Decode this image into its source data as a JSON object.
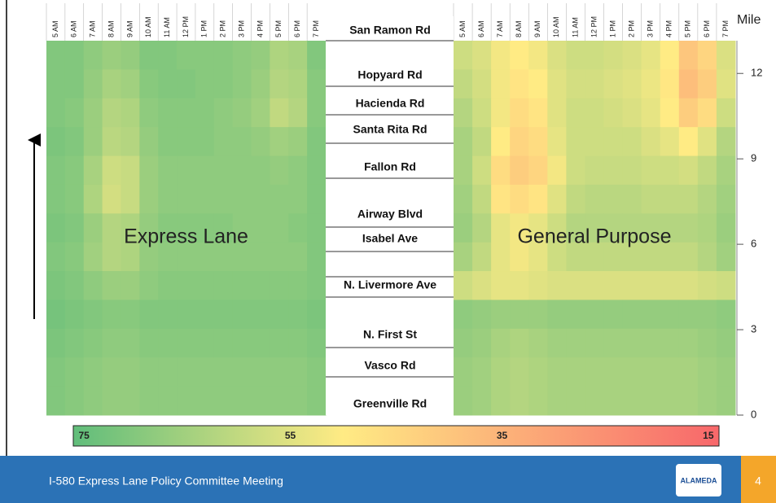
{
  "chart_data": [
    {
      "type": "heatmap",
      "label": "Express Lane",
      "x": [
        "5 AM",
        "6 AM",
        "7 AM",
        "8 AM",
        "9 AM",
        "10 AM",
        "11 AM",
        "12 PM",
        "1 PM",
        "2 PM",
        "3 PM",
        "4 PM",
        "5 PM",
        "6 PM",
        "7 PM"
      ],
      "z": [
        [
          70,
          70,
          68,
          66,
          67,
          70,
          70,
          69,
          69,
          69,
          68,
          67,
          63,
          64,
          70
        ],
        [
          70,
          70,
          67,
          64,
          65,
          69,
          70,
          70,
          69,
          69,
          68,
          66,
          62,
          63,
          69
        ],
        [
          70,
          69,
          66,
          62,
          63,
          68,
          69,
          69,
          69,
          68,
          67,
          65,
          60,
          62,
          69
        ],
        [
          71,
          70,
          66,
          61,
          62,
          67,
          69,
          69,
          69,
          68,
          68,
          67,
          65,
          66,
          70
        ],
        [
          70,
          69,
          64,
          58,
          59,
          66,
          68,
          68,
          68,
          68,
          68,
          68,
          67,
          68,
          70
        ],
        [
          70,
          69,
          63,
          57,
          59,
          66,
          68,
          68,
          68,
          68,
          68,
          68,
          68,
          68,
          70
        ],
        [
          71,
          70,
          66,
          62,
          63,
          67,
          69,
          69,
          69,
          69,
          68,
          68,
          68,
          69,
          70
        ],
        [
          70,
          69,
          65,
          62,
          63,
          67,
          68,
          68,
          68,
          68,
          68,
          68,
          68,
          68,
          70
        ],
        [
          71,
          70,
          68,
          66,
          66,
          68,
          69,
          69,
          69,
          69,
          69,
          69,
          69,
          69,
          70
        ],
        [
          72,
          71,
          70,
          69,
          69,
          70,
          70,
          70,
          70,
          70,
          70,
          70,
          70,
          70,
          71
        ],
        [
          71,
          70,
          69,
          68,
          68,
          69,
          69,
          69,
          69,
          69,
          69,
          69,
          69,
          69,
          70
        ],
        [
          70,
          69,
          68,
          67,
          67,
          68,
          68,
          68,
          68,
          68,
          68,
          68,
          68,
          68,
          69
        ],
        [
          70,
          69,
          68,
          67,
          67,
          68,
          68,
          68,
          68,
          68,
          68,
          68,
          68,
          68,
          69
        ]
      ]
    },
    {
      "type": "heatmap",
      "label": "General Purpose",
      "x": [
        "5 AM",
        "6 AM",
        "7 AM",
        "8 AM",
        "9 AM",
        "10 AM",
        "11 AM",
        "12 PM",
        "1 PM",
        "2 PM",
        "3 PM",
        "4 PM",
        "5 PM",
        "6 PM",
        "7 PM"
      ],
      "z": [
        [
          58,
          56,
          52,
          50,
          52,
          56,
          58,
          58,
          57,
          56,
          54,
          50,
          40,
          44,
          56
        ],
        [
          60,
          57,
          52,
          48,
          50,
          55,
          57,
          57,
          56,
          55,
          53,
          49,
          38,
          42,
          55
        ],
        [
          62,
          58,
          52,
          46,
          48,
          55,
          58,
          58,
          57,
          56,
          54,
          50,
          42,
          46,
          58
        ],
        [
          64,
          60,
          50,
          44,
          46,
          54,
          58,
          58,
          58,
          58,
          56,
          54,
          50,
          55,
          62
        ],
        [
          64,
          58,
          46,
          42,
          44,
          52,
          58,
          59,
          59,
          59,
          58,
          58,
          57,
          60,
          64
        ],
        [
          65,
          60,
          48,
          46,
          48,
          55,
          60,
          61,
          61,
          61,
          60,
          60,
          60,
          62,
          65
        ],
        [
          66,
          62,
          54,
          52,
          54,
          58,
          62,
          62,
          62,
          62,
          62,
          62,
          62,
          63,
          66
        ],
        [
          64,
          60,
          54,
          52,
          54,
          58,
          60,
          60,
          60,
          60,
          60,
          60,
          60,
          62,
          65
        ],
        [
          58,
          56,
          54,
          54,
          55,
          56,
          56,
          56,
          56,
          56,
          56,
          56,
          56,
          57,
          58
        ],
        [
          68,
          67,
          66,
          66,
          66,
          67,
          67,
          67,
          67,
          67,
          67,
          67,
          67,
          67,
          68
        ],
        [
          67,
          66,
          64,
          63,
          64,
          65,
          65,
          65,
          65,
          65,
          65,
          65,
          65,
          66,
          67
        ],
        [
          66,
          65,
          63,
          62,
          63,
          64,
          64,
          64,
          64,
          64,
          64,
          64,
          64,
          65,
          66
        ],
        [
          66,
          65,
          63,
          62,
          63,
          64,
          64,
          64,
          64,
          64,
          64,
          64,
          64,
          65,
          66
        ]
      ]
    }
  ],
  "mile_axis": {
    "label": "Mile",
    "ylim": [
      0,
      13.15
    ],
    "yticks": [
      0,
      3,
      6,
      9,
      12
    ]
  },
  "colorbar": {
    "lim": [
      75.5,
      14.5
    ],
    "ticks": [
      75,
      55,
      35,
      15
    ],
    "stops": [
      [
        75,
        "#63be7b"
      ],
      [
        50,
        "#ffeb84"
      ],
      [
        15,
        "#f8696b"
      ]
    ]
  },
  "roads": [
    "San Ramon Rd",
    "Hopyard Rd",
    "Hacienda Rd",
    "Santa Rita Rd",
    "Fallon Rd",
    "Airway Blvd",
    "Isabel Ave",
    "N. Livermore Ave",
    "N. First St",
    "Vasco Rd",
    "Greenville Rd"
  ],
  "footer": {
    "text": "I-580 Express Lane Policy Committee Meeting",
    "page": "4",
    "logo": "ALAMEDA"
  }
}
